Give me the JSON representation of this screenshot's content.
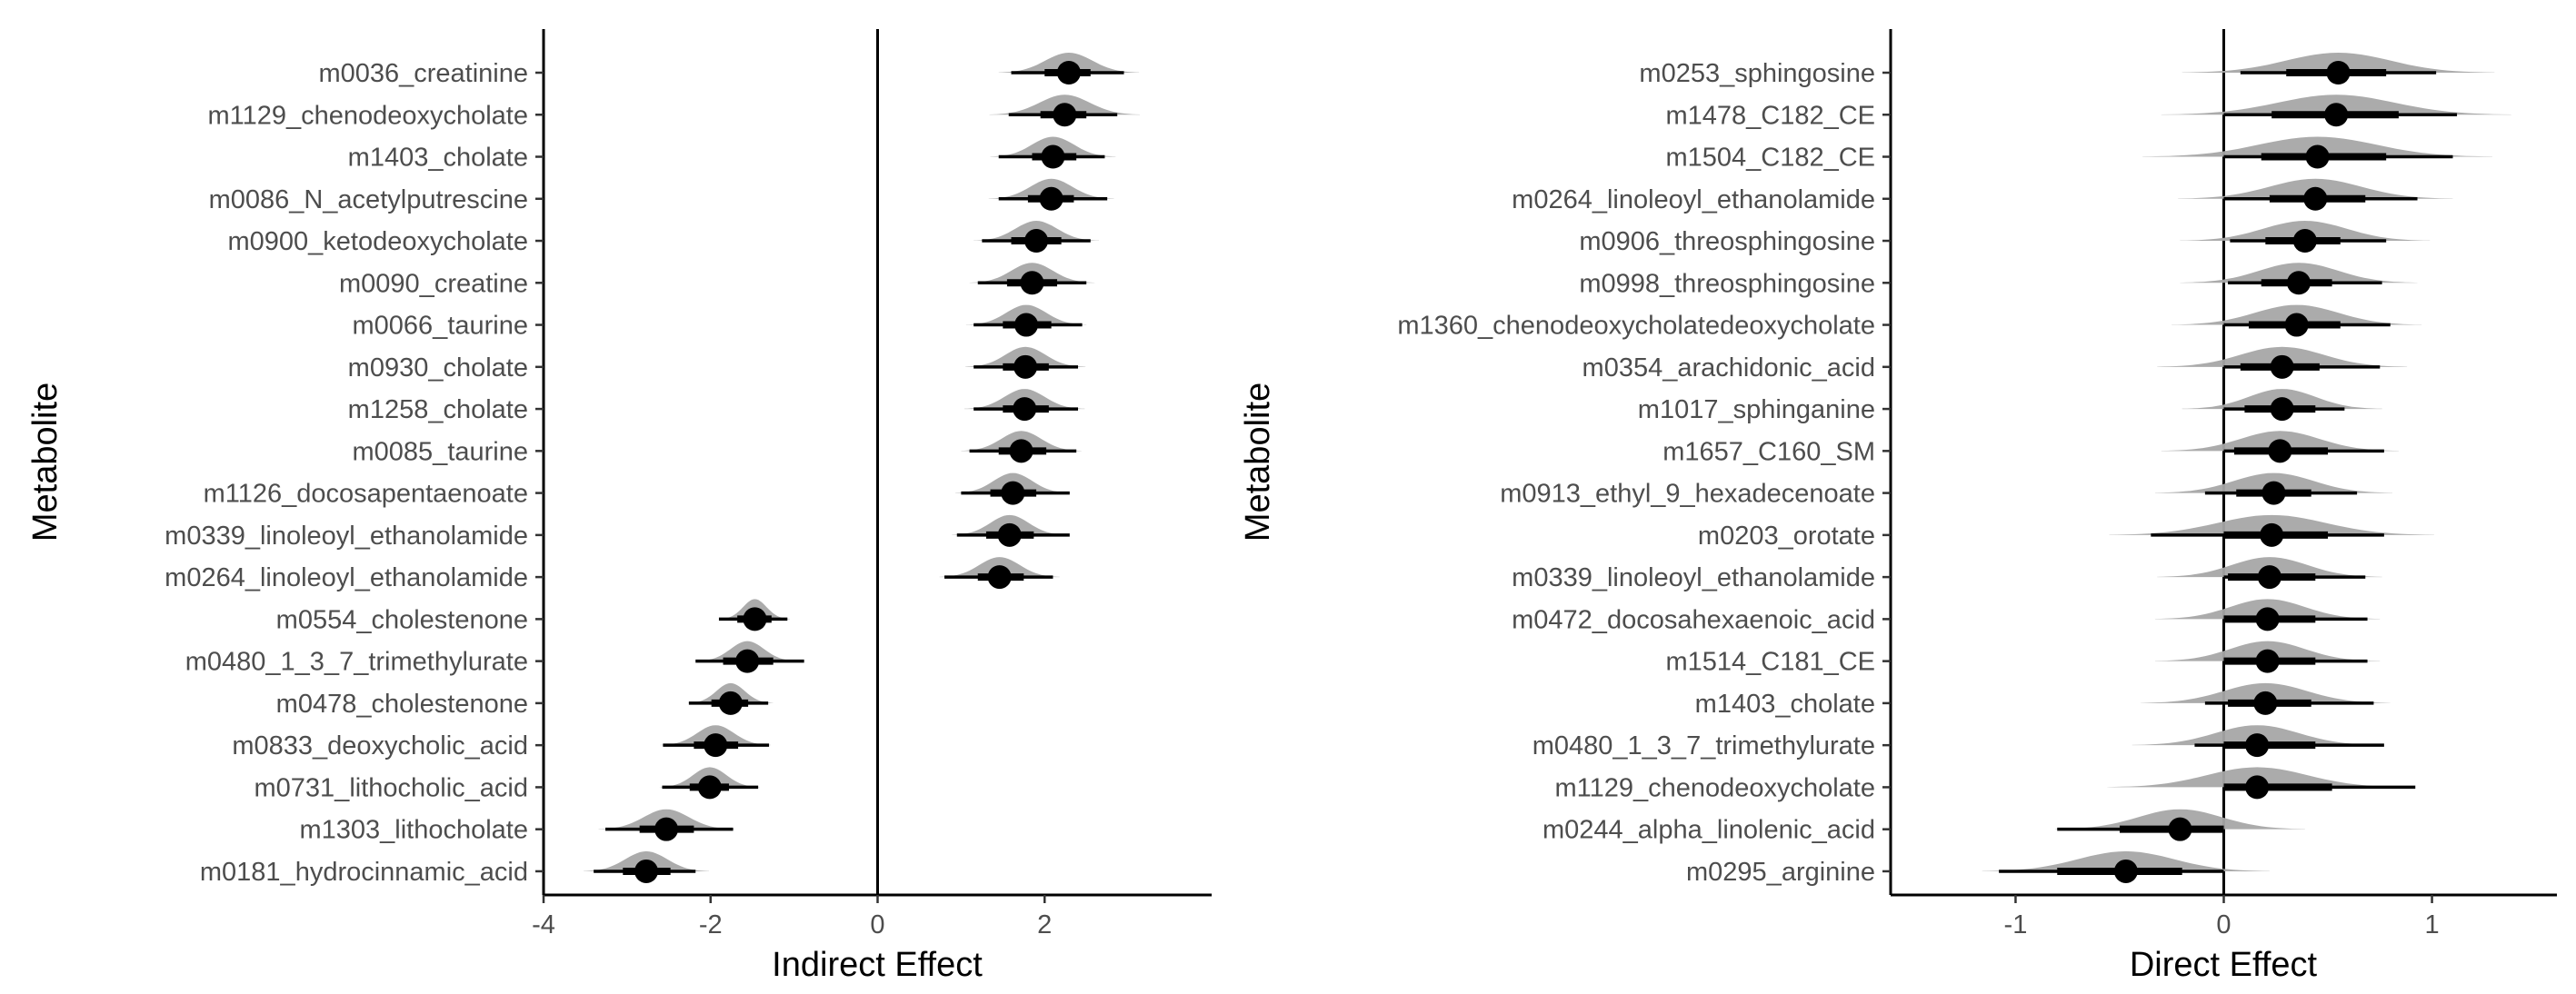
{
  "chart_data": [
    {
      "type": "forest-eye",
      "xlabel": "Indirect Effect",
      "ylabel": "Metabolite",
      "xlim": [
        -4,
        4
      ],
      "xticks": [
        -4,
        -2,
        0,
        2
      ],
      "xtick_labels": [
        "-4",
        "-2",
        "0",
        "2"
      ],
      "reference_line": 0,
      "grid": false,
      "colors": {
        "point": "#000000",
        "density": "#a6a6a6",
        "axis": "#000000"
      },
      "categories": [
        "m0036_creatinine",
        "m1129_chenodeoxycholate",
        "m1403_cholate",
        "m0086_N_acetylputrescine",
        "m0900_ketodeoxycholate",
        "m0090_creatine",
        "m0066_taurine",
        "m0930_cholate",
        "m1258_cholate",
        "m0085_taurine",
        "m1126_docosapentaenoate",
        "m0339_linoleoyl_ethanolamide",
        "m0264_linoleoyl_ethanolamide",
        "m0554_cholestenone",
        "m0480_1_3_7_trimethylurate",
        "m0478_cholestenone",
        "m0833_deoxycholic_acid",
        "m0731_lithocholic_acid",
        "m1303_lithocholate",
        "m0181_hydrocinnamic_acid"
      ],
      "estimates": [
        2.29,
        2.24,
        2.1,
        2.08,
        1.9,
        1.85,
        1.78,
        1.77,
        1.76,
        1.72,
        1.62,
        1.58,
        1.46,
        -1.47,
        -1.56,
        -1.76,
        -1.94,
        -2.01,
        -2.53,
        -2.77
      ],
      "interval_66": [
        [
          2.0,
          2.55
        ],
        [
          1.95,
          2.5
        ],
        [
          1.85,
          2.38
        ],
        [
          1.8,
          2.35
        ],
        [
          1.6,
          2.2
        ],
        [
          1.55,
          2.15
        ],
        [
          1.5,
          2.08
        ],
        [
          1.5,
          2.05
        ],
        [
          1.5,
          2.05
        ],
        [
          1.45,
          2.02
        ],
        [
          1.35,
          1.9
        ],
        [
          1.3,
          1.87
        ],
        [
          1.2,
          1.75
        ],
        [
          -1.68,
          -1.27
        ],
        [
          -1.85,
          -1.25
        ],
        [
          -1.99,
          -1.55
        ],
        [
          -2.2,
          -1.67
        ],
        [
          -2.25,
          -1.78
        ],
        [
          -2.85,
          -2.2
        ],
        [
          -3.05,
          -2.48
        ]
      ],
      "interval_95": [
        [
          1.6,
          2.95
        ],
        [
          1.57,
          2.87
        ],
        [
          1.45,
          2.72
        ],
        [
          1.45,
          2.75
        ],
        [
          1.25,
          2.55
        ],
        [
          1.2,
          2.5
        ],
        [
          1.15,
          2.45
        ],
        [
          1.15,
          2.4
        ],
        [
          1.15,
          2.4
        ],
        [
          1.1,
          2.38
        ],
        [
          1.0,
          2.3
        ],
        [
          0.95,
          2.3
        ],
        [
          0.8,
          2.1
        ],
        [
          -1.9,
          -1.08
        ],
        [
          -2.18,
          -0.88
        ],
        [
          -2.26,
          -1.31
        ],
        [
          -2.57,
          -1.3
        ],
        [
          -2.58,
          -1.43
        ],
        [
          -3.26,
          -1.73
        ],
        [
          -3.4,
          -2.18
        ]
      ],
      "density_sd": [
        0.28,
        0.3,
        0.25,
        0.25,
        0.25,
        0.25,
        0.24,
        0.24,
        0.24,
        0.24,
        0.23,
        0.23,
        0.24,
        0.14,
        0.2,
        0.17,
        0.22,
        0.2,
        0.27,
        0.25
      ]
    },
    {
      "type": "forest-eye",
      "xlabel": "Direct Effect",
      "ylabel": "Metabolite",
      "xlim": [
        -1.6,
        1.6
      ],
      "xticks": [
        -1,
        0,
        1
      ],
      "xtick_labels": [
        "-1",
        "0",
        "1"
      ],
      "reference_line": 0,
      "grid": false,
      "colors": {
        "point": "#000000",
        "density": "#a6a6a6",
        "axis": "#000000"
      },
      "categories": [
        "m0253_sphingosine",
        "m1478_C182_CE",
        "m1504_C182_CE",
        "m0264_linoleoyl_ethanolamide",
        "m0906_threosphingosine",
        "m0998_threosphingosine",
        "m1360_chenodeoxycholatedeoxycholate",
        "m0354_arachidonic_acid",
        "m1017_sphinganine",
        "m1657_C160_SM",
        "m0913_ethyl_9_hexadecenoate",
        "m0203_orotate",
        "m0339_linoleoyl_ethanolamide",
        "m0472_docosahexaenoic_acid",
        "m1514_C181_CE",
        "m1403_cholate",
        "m0480_1_3_7_trimethylurate",
        "m1129_chenodeoxycholate",
        "m0244_alpha_linolenic_acid",
        "m0295_arginine"
      ],
      "estimates": [
        0.55,
        0.54,
        0.45,
        0.44,
        0.39,
        0.36,
        0.35,
        0.28,
        0.28,
        0.27,
        0.24,
        0.23,
        0.22,
        0.21,
        0.21,
        0.2,
        0.16,
        0.16,
        -0.21,
        -0.47
      ],
      "interval_66": [
        [
          0.3,
          0.78
        ],
        [
          0.23,
          0.84
        ],
        [
          0.18,
          0.78
        ],
        [
          0.22,
          0.68
        ],
        [
          0.2,
          0.56
        ],
        [
          0.18,
          0.52
        ],
        [
          0.12,
          0.56
        ],
        [
          0.08,
          0.46
        ],
        [
          0.1,
          0.44
        ],
        [
          0.05,
          0.5
        ],
        [
          0.06,
          0.42
        ],
        [
          0.0,
          0.5
        ],
        [
          0.02,
          0.44
        ],
        [
          0.0,
          0.44
        ],
        [
          0.0,
          0.44
        ],
        [
          0.02,
          0.42
        ],
        [
          0.0,
          0.44
        ],
        [
          0.0,
          0.52
        ],
        [
          -0.5,
          0.0
        ],
        [
          -0.8,
          -0.2
        ]
      ],
      "interval_95": [
        [
          0.08,
          1.02
        ],
        [
          0.0,
          1.12
        ],
        [
          0.0,
          1.1
        ],
        [
          0.0,
          0.93
        ],
        [
          0.03,
          0.78
        ],
        [
          0.02,
          0.76
        ],
        [
          0.0,
          0.8
        ],
        [
          0.0,
          0.75
        ],
        [
          0.0,
          0.58
        ],
        [
          0.0,
          0.77
        ],
        [
          -0.09,
          0.64
        ],
        [
          -0.35,
          0.77
        ],
        [
          0.0,
          0.68
        ],
        [
          0.0,
          0.69
        ],
        [
          0.0,
          0.69
        ],
        [
          -0.09,
          0.72
        ],
        [
          -0.14,
          0.77
        ],
        [
          0.0,
          0.92
        ],
        [
          -0.8,
          0.0
        ],
        [
          -1.08,
          0.0
        ]
      ],
      "density_sd": [
        0.25,
        0.28,
        0.28,
        0.22,
        0.2,
        0.19,
        0.2,
        0.2,
        0.16,
        0.19,
        0.19,
        0.26,
        0.18,
        0.18,
        0.18,
        0.2,
        0.2,
        0.24,
        0.2,
        0.23
      ]
    }
  ]
}
